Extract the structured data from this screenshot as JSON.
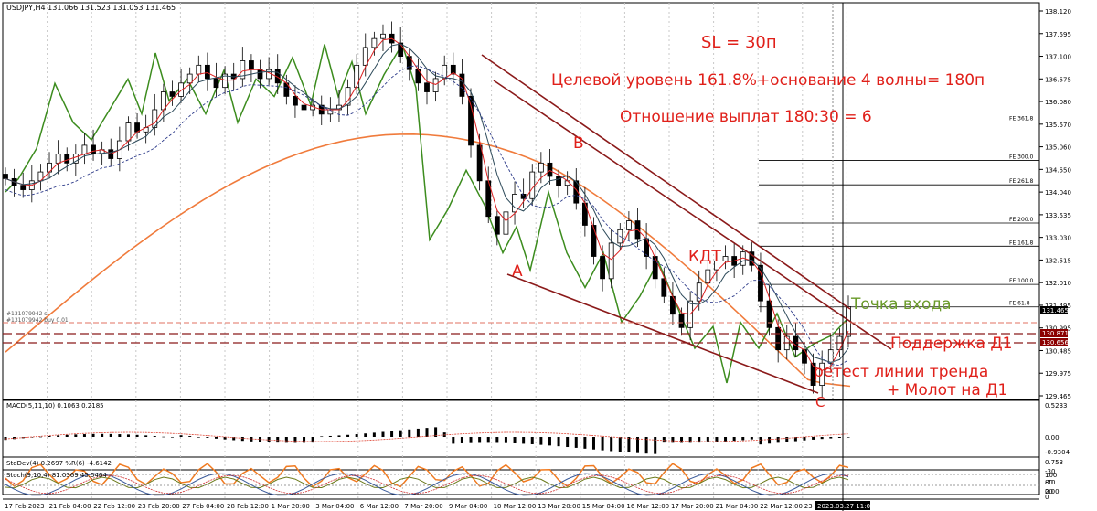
{
  "header": {
    "symbol_info": "USDJPY,H4  131.066 131.523 131.053 131.465",
    "annotation_order_1": "#131079942 sl",
    "annotation_order_2": "#131079942 buy 0.01",
    "macd_label": "MACD(5,11,10) 0.1063 0.2185",
    "stddev_label": "StdDev(4) 0.2697 %R(6) -4.6142",
    "stoch_label": "Stoch(9,10,4) 81.0369 45.5464"
  },
  "annotations": {
    "sl": "SL = 30п",
    "target": "Целевой уровень 161.8%+основание 4 волны= 180п",
    "ratio": "Отношение выплат 180:30 = 6",
    "point_b": "B",
    "point_a": "A",
    "point_c": "C",
    "kdt": "КДТ",
    "entry_point": "Точка входа",
    "support_d1": "Поддержка Д1",
    "retest_line1": "ретест линии тренда",
    "retest_line2": "+ Молот на Д1"
  },
  "fibo_levels": [
    {
      "label": "FE 361.8",
      "price": 135.62
    },
    {
      "label": "FE 300.0",
      "price": 134.76
    },
    {
      "label": "FE 261.8",
      "price": 134.21
    },
    {
      "label": "FE 200.0",
      "price": 133.35
    },
    {
      "label": "FE 161.8",
      "price": 132.83
    },
    {
      "label": "FE 100.0",
      "price": 131.97
    },
    {
      "label": "FE 61.8",
      "price": 131.465
    }
  ],
  "price_axis": {
    "ticks": [
      "138.120",
      "137.595",
      "137.100",
      "136.575",
      "136.080",
      "135.570",
      "135.060",
      "134.550",
      "134.040",
      "133.535",
      "133.030",
      "132.515",
      "132.010",
      "131.495",
      "130.995",
      "130.485",
      "129.975",
      "129.465"
    ],
    "badges": [
      {
        "text": "131.465",
        "color": "#000000"
      },
      {
        "text": "130.871",
        "color": "#8b0000"
      },
      {
        "text": "130.656",
        "color": "#8b0000"
      }
    ]
  },
  "macd_axis": [
    "0.5233",
    "0.00",
    "-0.9304"
  ],
  "stddev_axis": [
    "0.753",
    "-30",
    "-70",
    "0.00"
  ],
  "stoch_axis": [
    "100",
    "80",
    "20",
    "0"
  ],
  "time_axis": [
    "17 Feb 2023",
    "21 Feb 04:00",
    "22 Feb 12:00",
    "23 Feb 20:00",
    "27 Feb 04:00",
    "28 Feb 12:00",
    "1 Mar 20:00",
    "3 Mar 04:00",
    "6 Mar 12:00",
    "7 Mar 20:00",
    "9 Mar 04:00",
    "10 Mar 12:00",
    "13 Mar 20:00",
    "15 Mar 04:00",
    "16 Mar 12:00",
    "17 Mar 20:00",
    "21 Mar 04:00",
    "22 Mar 12:00",
    "23 Mar 20:00",
    "2023.03.27 11:00"
  ],
  "chart_data": {
    "type": "candlestick",
    "symbol": "USDJPY",
    "timeframe": "H4",
    "ylim": [
      129.465,
      138.12
    ],
    "closes": [
      134.35,
      134.2,
      134.1,
      134.3,
      134.5,
      134.7,
      134.9,
      134.7,
      134.9,
      135.1,
      134.9,
      135.0,
      134.8,
      135.2,
      135.6,
      135.4,
      135.5,
      135.9,
      136.3,
      136.2,
      136.5,
      136.7,
      136.9,
      136.6,
      136.4,
      136.7,
      136.6,
      137.0,
      136.8,
      136.6,
      136.8,
      136.5,
      136.2,
      136.0,
      135.9,
      136.0,
      135.8,
      135.9,
      136.0,
      136.4,
      136.9,
      137.3,
      137.5,
      137.6,
      137.4,
      137.1,
      136.8,
      136.5,
      136.3,
      136.6,
      136.9,
      136.7,
      136.2,
      135.1,
      134.3,
      133.5,
      133.1,
      133.6,
      134.0,
      133.9,
      134.5,
      134.7,
      134.4,
      134.2,
      134.3,
      133.8,
      133.3,
      132.6,
      132.1,
      132.9,
      133.2,
      133.4,
      133.0,
      132.6,
      132.1,
      131.7,
      131.3,
      131.0,
      131.6,
      132.0,
      132.3,
      132.5,
      132.6,
      132.4,
      132.7,
      132.4,
      131.6,
      131.0,
      130.5,
      130.8,
      130.5,
      130.2,
      129.7,
      130.2,
      130.5,
      130.8,
      131.47
    ],
    "ma_short": [],
    "ma_long_note": "orange moving average"
  }
}
